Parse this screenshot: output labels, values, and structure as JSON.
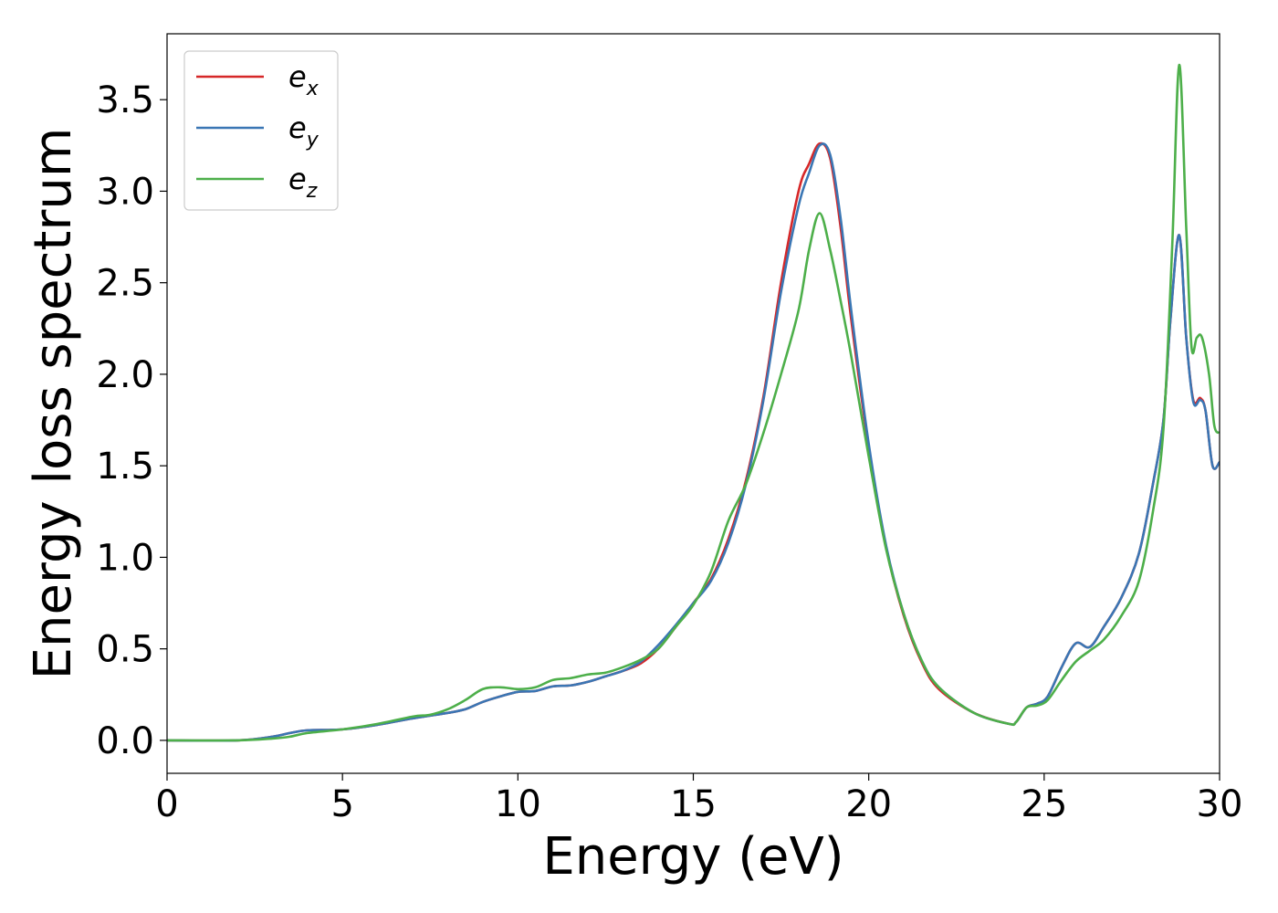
{
  "chart_data": {
    "type": "line",
    "title": "",
    "xlabel": "Energy (eV)",
    "ylabel": "Energy loss spectrum",
    "xlim": [
      0,
      30
    ],
    "ylim": [
      -0.18,
      3.86
    ],
    "xticks": [
      0,
      5,
      10,
      15,
      20,
      25,
      30
    ],
    "xtick_labels": [
      "0",
      "5",
      "10",
      "15",
      "20",
      "25",
      "30"
    ],
    "yticks": [
      0.0,
      0.5,
      1.0,
      1.5,
      2.0,
      2.5,
      3.0,
      3.5
    ],
    "ytick_labels": [
      "0.0",
      "0.5",
      "1.0",
      "1.5",
      "2.0",
      "2.5",
      "3.0",
      "3.5"
    ],
    "grid": false,
    "legend_position": "top-left",
    "series": [
      {
        "name": "e_x",
        "label_main": "e",
        "label_sub": "x",
        "color": "#d62728",
        "x": [
          0,
          2,
          3,
          3.5,
          4,
          5,
          6,
          7,
          8,
          8.5,
          9,
          9.5,
          10,
          10.5,
          11,
          11.5,
          12,
          12.5,
          13,
          13.5,
          14,
          14.5,
          15,
          15.5,
          16,
          16.5,
          17,
          17.5,
          18,
          18.3,
          18.6,
          18.9,
          19.2,
          19.5,
          20,
          20.5,
          21,
          21.5,
          22,
          23,
          24,
          24.2,
          24.5,
          24.8,
          25.1,
          25.5,
          25.9,
          26.3,
          26.7,
          27.2,
          27.7,
          28.1,
          28.4,
          28.6,
          28.85,
          29.05,
          29.25,
          29.45,
          29.6,
          29.8,
          30
        ],
        "y": [
          0.0,
          0.0,
          0.02,
          0.04,
          0.055,
          0.06,
          0.085,
          0.12,
          0.15,
          0.17,
          0.21,
          0.24,
          0.265,
          0.27,
          0.295,
          0.3,
          0.32,
          0.35,
          0.38,
          0.42,
          0.5,
          0.62,
          0.75,
          0.88,
          1.1,
          1.42,
          1.88,
          2.5,
          3.0,
          3.15,
          3.26,
          3.18,
          2.8,
          2.3,
          1.6,
          1.05,
          0.68,
          0.43,
          0.28,
          0.15,
          0.09,
          0.1,
          0.18,
          0.2,
          0.24,
          0.4,
          0.53,
          0.51,
          0.62,
          0.78,
          1.02,
          1.4,
          1.75,
          2.3,
          2.76,
          2.2,
          1.86,
          1.87,
          1.8,
          1.5,
          1.52
        ]
      },
      {
        "name": "e_y",
        "label_main": "e",
        "label_sub": "y",
        "color": "#3a76b4",
        "x": [
          0,
          2,
          3,
          3.5,
          4,
          5,
          6,
          7,
          8,
          8.5,
          9,
          9.5,
          10,
          10.5,
          11,
          11.5,
          12,
          12.5,
          13,
          13.5,
          14,
          14.5,
          15,
          15.5,
          16,
          16.5,
          17,
          17.5,
          18,
          18.3,
          18.6,
          18.9,
          19.2,
          19.5,
          20,
          20.5,
          21,
          21.5,
          22,
          23,
          24,
          24.2,
          24.5,
          24.8,
          25.1,
          25.5,
          25.9,
          26.3,
          26.7,
          27.2,
          27.7,
          28.1,
          28.4,
          28.6,
          28.85,
          29.05,
          29.25,
          29.45,
          29.6,
          29.8,
          30
        ],
        "y": [
          0.0,
          0.0,
          0.02,
          0.04,
          0.055,
          0.06,
          0.085,
          0.12,
          0.15,
          0.17,
          0.21,
          0.24,
          0.265,
          0.27,
          0.295,
          0.3,
          0.32,
          0.35,
          0.38,
          0.43,
          0.52,
          0.63,
          0.75,
          0.87,
          1.08,
          1.4,
          1.86,
          2.45,
          2.92,
          3.1,
          3.25,
          3.2,
          2.85,
          2.35,
          1.62,
          1.06,
          0.69,
          0.44,
          0.29,
          0.15,
          0.09,
          0.1,
          0.18,
          0.2,
          0.24,
          0.4,
          0.53,
          0.51,
          0.62,
          0.78,
          1.02,
          1.4,
          1.75,
          2.3,
          2.76,
          2.2,
          1.85,
          1.86,
          1.8,
          1.5,
          1.52
        ]
      },
      {
        "name": "e_z",
        "label_main": "e",
        "label_sub": "z",
        "color": "#4daf4a",
        "x": [
          0,
          2,
          3,
          3.5,
          4,
          5,
          6,
          7,
          7.5,
          8,
          8.5,
          9,
          9.5,
          10,
          10.5,
          11,
          11.5,
          12,
          12.5,
          13,
          13.5,
          14,
          14.5,
          15,
          15.5,
          16,
          16.5,
          17,
          17.5,
          18,
          18.3,
          18.6,
          18.9,
          19.2,
          19.5,
          20,
          20.5,
          21,
          21.5,
          22,
          23,
          24,
          24.2,
          24.5,
          24.8,
          25.1,
          25.5,
          25.9,
          26.3,
          26.7,
          27.2,
          27.7,
          28.1,
          28.4,
          28.65,
          28.85,
          29.05,
          29.2,
          29.35,
          29.5,
          29.7,
          29.85,
          30
        ],
        "y": [
          0.0,
          0.0,
          0.01,
          0.02,
          0.04,
          0.06,
          0.09,
          0.13,
          0.14,
          0.17,
          0.22,
          0.28,
          0.29,
          0.28,
          0.29,
          0.33,
          0.34,
          0.36,
          0.37,
          0.4,
          0.44,
          0.5,
          0.62,
          0.74,
          0.92,
          1.2,
          1.4,
          1.68,
          2.0,
          2.35,
          2.68,
          2.88,
          2.68,
          2.4,
          2.1,
          1.55,
          1.04,
          0.69,
          0.44,
          0.29,
          0.15,
          0.09,
          0.1,
          0.18,
          0.19,
          0.22,
          0.33,
          0.43,
          0.49,
          0.55,
          0.68,
          0.87,
          1.25,
          1.7,
          2.7,
          3.69,
          2.8,
          2.15,
          2.2,
          2.2,
          2.0,
          1.72,
          1.68
        ]
      }
    ]
  }
}
